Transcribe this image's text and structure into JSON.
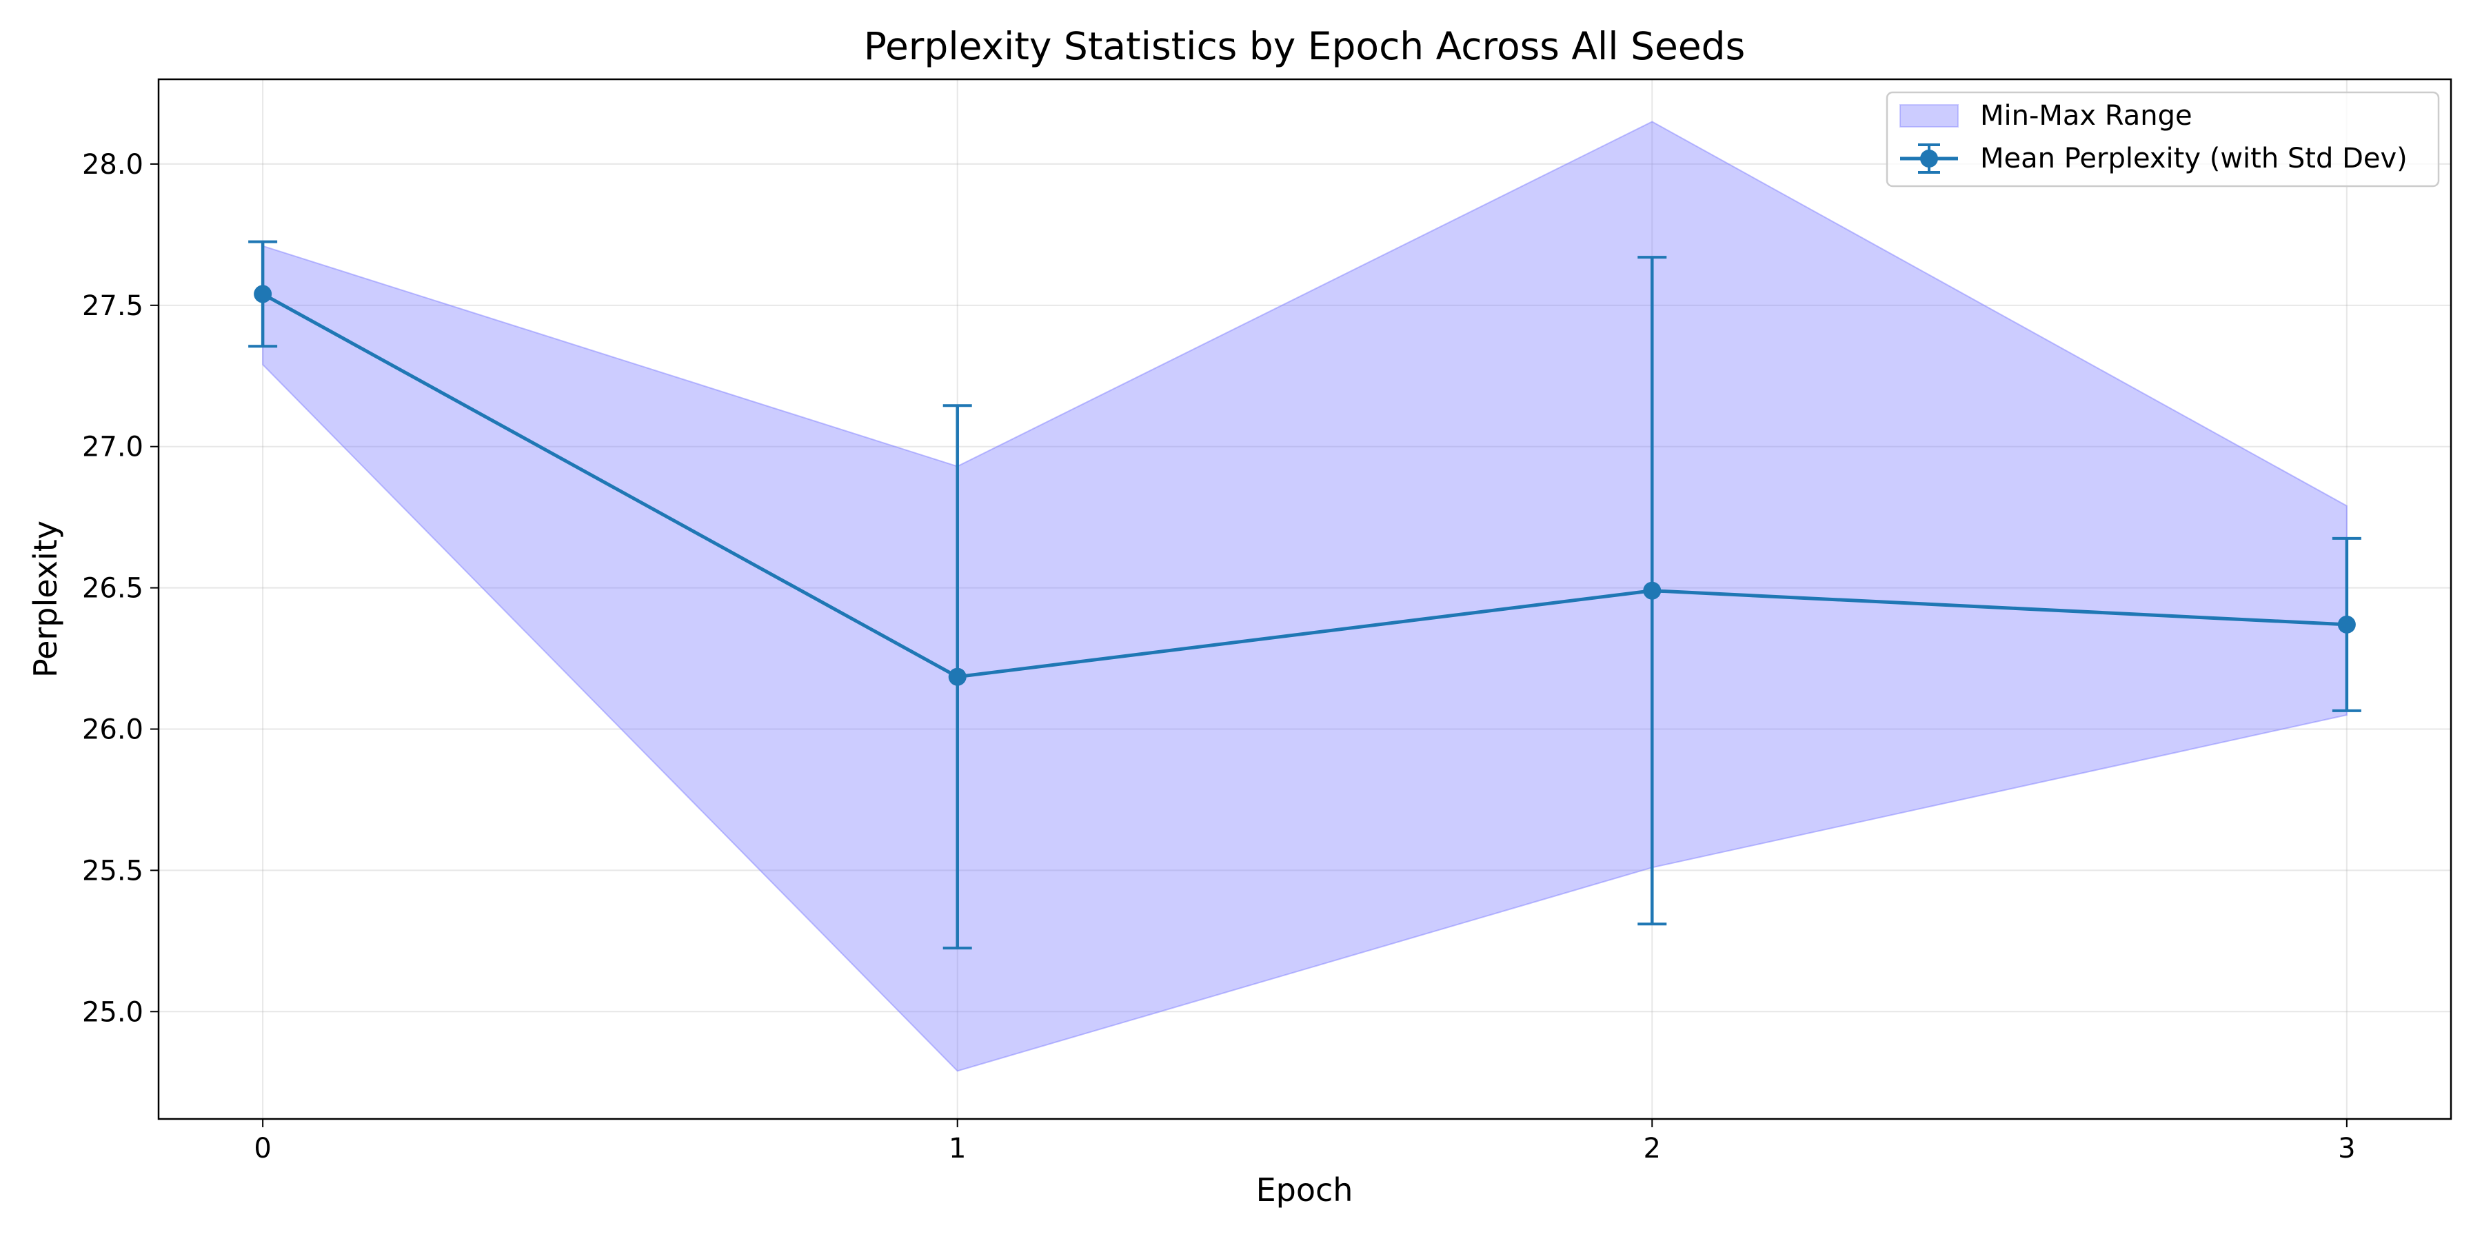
{
  "chart_data": {
    "type": "line",
    "title": "Perplexity Statistics by Epoch Across All Seeds",
    "xlabel": "Epoch",
    "ylabel": "Perplexity",
    "x": [
      0,
      1,
      2,
      3
    ],
    "xticks": [
      0,
      1,
      2,
      3
    ],
    "xlim": [
      -0.15,
      3.15
    ],
    "ylim": [
      24.62,
      28.3
    ],
    "yticks": [
      25.0,
      25.5,
      26.0,
      26.5,
      27.0,
      27.5,
      28.0
    ],
    "grid": true,
    "legend_position": "top-right",
    "series": [
      {
        "name": "Mean Perplexity (with Std Dev)",
        "kind": "errorbar-line",
        "color": "#1f77b4",
        "values": [
          27.54,
          26.185,
          26.49,
          26.37
        ],
        "std": [
          0.185,
          0.96,
          1.18,
          0.305
        ]
      },
      {
        "name": "Min-Max Range",
        "kind": "band",
        "color": "#8080ff",
        "min": [
          27.29,
          24.79,
          25.51,
          26.05
        ],
        "max": [
          27.71,
          26.93,
          28.15,
          26.79
        ]
      }
    ]
  }
}
